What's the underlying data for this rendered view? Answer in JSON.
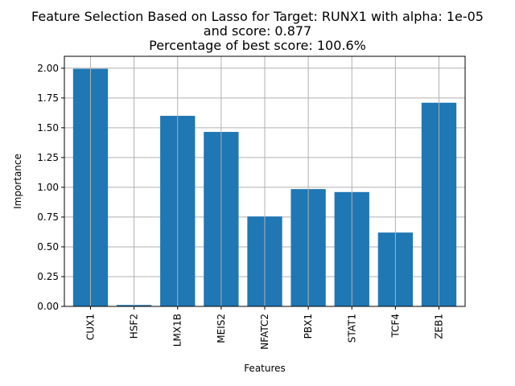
{
  "chart_data": {
    "type": "bar",
    "title_lines": [
      "Feature Selection Based on Lasso for Target: RUNX1 with alpha: 1e-05",
      "and score: 0.877",
      "Percentage of best score: 100.6%"
    ],
    "xlabel": "Features",
    "ylabel": "Importance",
    "categories": [
      "CUX1",
      "HSF2",
      "LMX1B",
      "MEIS2",
      "NFATC2",
      "PBX1",
      "STAT1",
      "TCF4",
      "ZEB1"
    ],
    "values": [
      1.995,
      0.012,
      1.6,
      1.465,
      0.755,
      0.985,
      0.96,
      0.62,
      1.71
    ],
    "ylim": [
      0,
      2.1
    ],
    "yticks": [
      0.0,
      0.25,
      0.5,
      0.75,
      1.0,
      1.25,
      1.5,
      1.75,
      2.0
    ],
    "ytick_labels": [
      "0.00",
      "0.25",
      "0.50",
      "0.75",
      "1.00",
      "1.25",
      "1.50",
      "1.75",
      "2.00"
    ],
    "grid": true,
    "bar_color": "#1f77b4",
    "grid_color": "#b0b0b0"
  }
}
